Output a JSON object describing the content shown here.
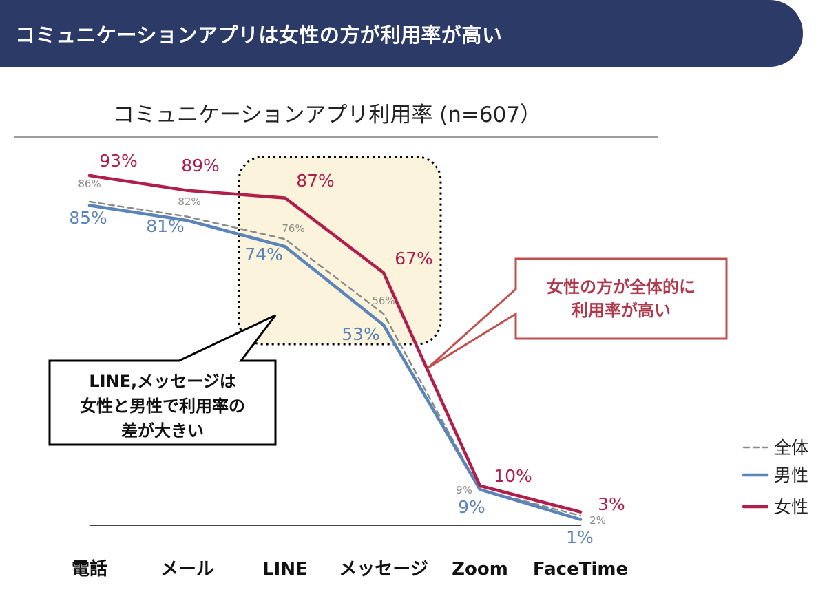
{
  "banner": {
    "title": "コミュニケーションアプリは女性の方が利用率が高い"
  },
  "colors": {
    "banner": "#2b3a67",
    "overall": "#8c8c86",
    "male": "#5b84b8",
    "female": "#b01f4b",
    "highlight_fill": "#fbf3dc",
    "callout_border": "#c0504d",
    "callout_text": "#b03a4d"
  },
  "chart_data": {
    "type": "line",
    "title": "コミュニケーションアプリ利用率 (n=607）",
    "categories": [
      "電話",
      "メール",
      "LINE",
      "メッセージ",
      "Zoom",
      "FaceTime"
    ],
    "series": [
      {
        "name": "全体",
        "style": "dashed",
        "values": [
          86,
          82,
          76,
          56,
          9,
          2
        ],
        "labels": [
          "86%",
          "82%",
          "76%",
          "56%",
          "9%",
          "2%"
        ]
      },
      {
        "name": "男性",
        "style": "solid",
        "values": [
          85,
          81,
          74,
          53,
          9,
          1
        ],
        "labels": [
          "85%",
          "81%",
          "74%",
          "53%",
          "9%",
          "1%"
        ]
      },
      {
        "name": "女性",
        "style": "solid",
        "values": [
          93,
          89,
          87,
          67,
          10,
          3
        ],
        "labels": [
          "93%",
          "89%",
          "87%",
          "67%",
          "10%",
          "3%"
        ]
      }
    ],
    "ylim": [
      0,
      100
    ],
    "grid": false,
    "legend": "right",
    "annotations": [
      {
        "id": "line-message",
        "lines": [
          "LINE,メッセージは",
          "女性と男性で利用率の",
          "差が大きい"
        ]
      },
      {
        "id": "female-higher",
        "lines": [
          "女性の方が全体的に",
          "利用率が高い"
        ]
      }
    ]
  }
}
